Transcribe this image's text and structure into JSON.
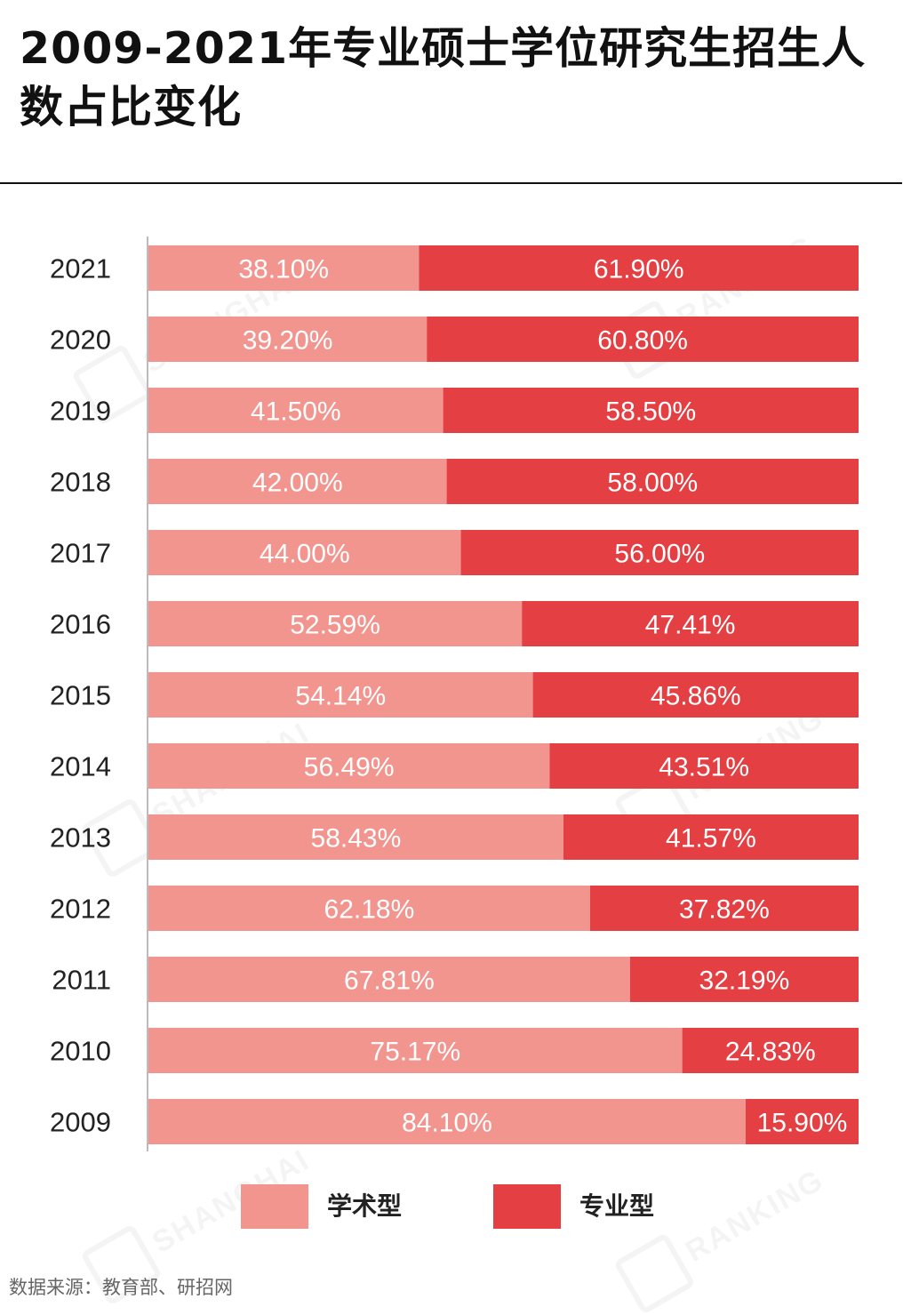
{
  "title": "2009-2021年专业硕士学位研究生招生人数占比变化",
  "source": "数据来源：教育部、研招网",
  "watermark_text": [
    "SHANGHAI",
    "RANKING"
  ],
  "colors": {
    "academic": "#f2958f",
    "professional": "#e43f43",
    "axis": "#bbbbbb"
  },
  "chart_data": {
    "type": "bar",
    "orientation": "horizontal",
    "stacked": true,
    "value_unit": "%",
    "legend_position": "bottom",
    "grid": false,
    "xlim": [
      0,
      100
    ],
    "categories": [
      "2021",
      "2020",
      "2019",
      "2018",
      "2017",
      "2016",
      "2015",
      "2014",
      "2013",
      "2012",
      "2011",
      "2010",
      "2009"
    ],
    "series": [
      {
        "name": "学术型",
        "labels": [
          "38.10%",
          "39.20%",
          "41.50%",
          "42.00%",
          "44.00%",
          "52.59%",
          "54.14%",
          "56.49%",
          "58.43%",
          "62.18%",
          "67.81%",
          "75.17%",
          "84.10%"
        ],
        "values": [
          38.1,
          39.2,
          41.5,
          42.0,
          44.0,
          52.59,
          54.14,
          56.49,
          58.43,
          62.18,
          67.81,
          75.17,
          84.1
        ]
      },
      {
        "name": "专业型",
        "labels": [
          "61.90%",
          "60.80%",
          "58.50%",
          "58.00%",
          "56.00%",
          "47.41%",
          "45.86%",
          "43.51%",
          "41.57%",
          "37.82%",
          "32.19%",
          "24.83%",
          "15.90%"
        ],
        "values": [
          61.9,
          60.8,
          58.5,
          58.0,
          56.0,
          47.41,
          45.86,
          43.51,
          41.57,
          37.82,
          32.19,
          24.83,
          15.9
        ]
      }
    ]
  }
}
